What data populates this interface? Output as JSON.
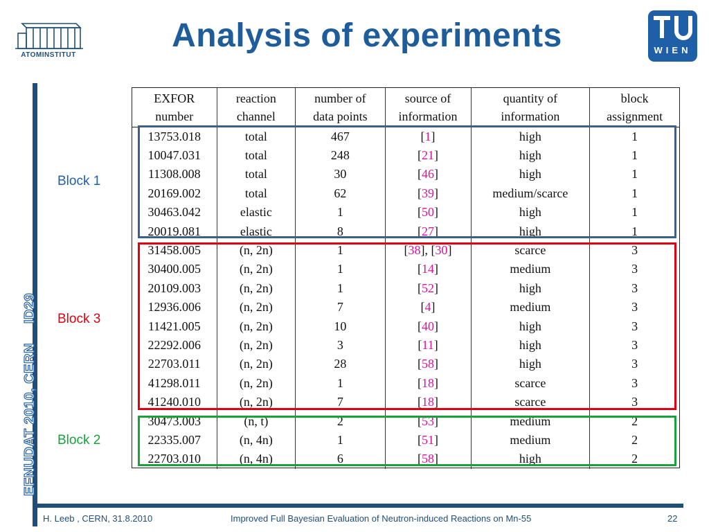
{
  "header": {
    "title": "Analysis of experiments",
    "logo_left_caption": "ATOMINSTITUT",
    "logo_right_text": "WIEN"
  },
  "sidebar_vertical": {
    "text_main": "EFNUDAT 2010, CERN",
    "text_id": "ID29"
  },
  "blocks": {
    "block_1": {
      "label": "Block 1",
      "color": "#3c5f8a"
    },
    "block_3": {
      "label": "Block 3",
      "color": "#e0000f"
    },
    "block_2": {
      "label": "Block 2",
      "color": "#17a33a"
    }
  },
  "table": {
    "headers": [
      [
        "EXFOR",
        "number"
      ],
      [
        "reaction",
        "channel"
      ],
      [
        "number of",
        "data points"
      ],
      [
        "source of",
        "information"
      ],
      [
        "quantity of",
        "information"
      ],
      [
        "block",
        "assignment"
      ]
    ],
    "rows": [
      {
        "exfor": "13753.018",
        "channel": "total",
        "points": "467",
        "source": [
          "1"
        ],
        "quantity": "high",
        "block": "1"
      },
      {
        "exfor": "10047.031",
        "channel": "total",
        "points": "248",
        "source": [
          "21"
        ],
        "quantity": "high",
        "block": "1"
      },
      {
        "exfor": "11308.008",
        "channel": "total",
        "points": "30",
        "source": [
          "46"
        ],
        "quantity": "high",
        "block": "1"
      },
      {
        "exfor": "20169.002",
        "channel": "total",
        "points": "62",
        "source": [
          "39"
        ],
        "quantity": "medium/scarce",
        "block": "1"
      },
      {
        "exfor": "30463.042",
        "channel": "elastic",
        "points": "1",
        "source": [
          "50"
        ],
        "quantity": "high",
        "block": "1"
      },
      {
        "exfor": "20019.081",
        "channel": "elastic",
        "points": "8",
        "source": [
          "27"
        ],
        "quantity": "high",
        "block": "1"
      },
      {
        "exfor": "31458.005",
        "channel": "(n, 2n)",
        "points": "1",
        "source": [
          "38",
          "30"
        ],
        "quantity": "scarce",
        "block": "3"
      },
      {
        "exfor": "30400.005",
        "channel": "(n, 2n)",
        "points": "1",
        "source": [
          "14"
        ],
        "quantity": "medium",
        "block": "3"
      },
      {
        "exfor": "20109.003",
        "channel": "(n, 2n)",
        "points": "1",
        "source": [
          "52"
        ],
        "quantity": "high",
        "block": "3"
      },
      {
        "exfor": "12936.006",
        "channel": "(n, 2n)",
        "points": "7",
        "source": [
          "4"
        ],
        "quantity": "medium",
        "block": "3"
      },
      {
        "exfor": "11421.005",
        "channel": "(n, 2n)",
        "points": "10",
        "source": [
          "40"
        ],
        "quantity": "high",
        "block": "3"
      },
      {
        "exfor": "22292.006",
        "channel": "(n, 2n)",
        "points": "3",
        "source": [
          "11"
        ],
        "quantity": "high",
        "block": "3"
      },
      {
        "exfor": "22703.011",
        "channel": "(n, 2n)",
        "points": "28",
        "source": [
          "58"
        ],
        "quantity": "high",
        "block": "3"
      },
      {
        "exfor": "41298.011",
        "channel": "(n, 2n)",
        "points": "1",
        "source": [
          "18"
        ],
        "quantity": "scarce",
        "block": "3"
      },
      {
        "exfor": "41240.010",
        "channel": "(n, 2n)",
        "points": "7",
        "source": [
          "18"
        ],
        "quantity": "scarce",
        "block": "3"
      },
      {
        "exfor": "30473.003",
        "channel": "(n, t)",
        "points": "2",
        "source": [
          "53"
        ],
        "quantity": "medium",
        "block": "2"
      },
      {
        "exfor": "22335.007",
        "channel": "(n, 4n)",
        "points": "1",
        "source": [
          "51"
        ],
        "quantity": "medium",
        "block": "2"
      },
      {
        "exfor": "22703.010",
        "channel": "(n, 4n)",
        "points": "6",
        "source": [
          "58"
        ],
        "quantity": "high",
        "block": "2"
      }
    ]
  },
  "footer": {
    "left": "H. Leeb , CERN, 31.8.2010",
    "center": "Improved Full Bayesian Evaluation of Neutron-induced Reactions on Mn-55",
    "page": "22"
  },
  "colors": {
    "title": "#1f5c9a",
    "accent_bar": "#1f4e79",
    "reference_link": "#e0109a",
    "tu_logo_bg": "#1f5fa8"
  }
}
